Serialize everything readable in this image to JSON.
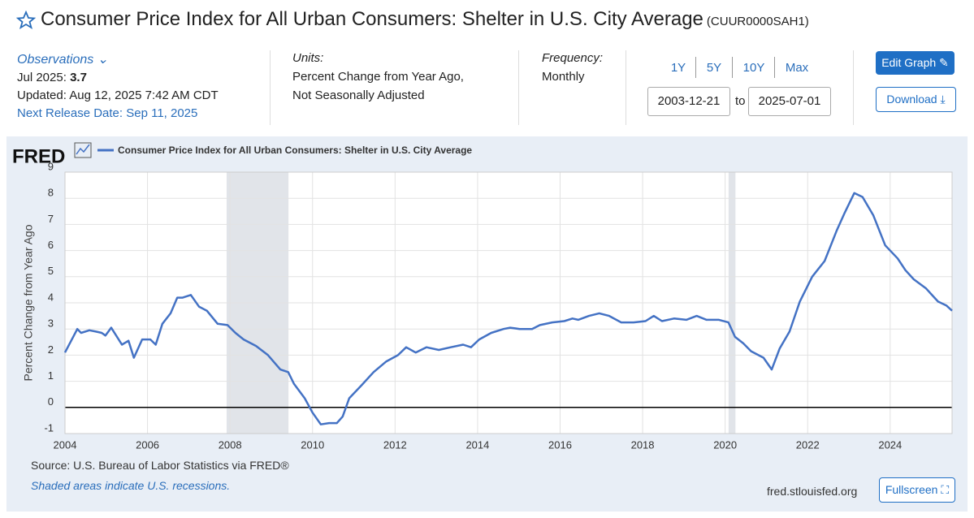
{
  "header": {
    "title": "Consumer Price Index for All Urban Consumers: Shelter in U.S. City Average",
    "series_id": "(CUUR0000SAH1)"
  },
  "observations": {
    "heading": "Observations",
    "label": "Jul 2025:",
    "value": "3.7",
    "updated": "Updated: Aug 12, 2025 7:42 AM CDT",
    "next_release": "Next Release Date: Sep 11, 2025"
  },
  "units": {
    "heading": "Units:",
    "lines": [
      "Percent Change from Year Ago,",
      "Not Seasonally Adjusted"
    ]
  },
  "frequency": {
    "heading": "Frequency:",
    "value": "Monthly"
  },
  "range": {
    "buttons": [
      "1Y",
      "5Y",
      "10Y",
      "Max"
    ],
    "start": "2003-12-21",
    "to": "to",
    "end": "2025-07-01"
  },
  "actions": {
    "edit": "Edit Graph",
    "download": "Download"
  },
  "chart_data": {
    "type": "line",
    "brand": "FRED",
    "y_label": "Percent Change from Year Ago",
    "xlim": [
      2004,
      2025.5
    ],
    "xticks": [
      2004,
      2006,
      2008,
      2010,
      2012,
      2014,
      2016,
      2018,
      2020,
      2022,
      2024
    ],
    "ylim": [
      -1,
      9
    ],
    "yticks": [
      -1,
      0,
      1,
      2,
      3,
      4,
      5,
      6,
      7,
      8,
      9
    ],
    "grid": true,
    "zero_line": true,
    "recessions": [
      [
        2007.917,
        2009.417
      ],
      [
        2020.083,
        2020.25
      ]
    ],
    "series": [
      {
        "name": "Consumer Price Index for All Urban Consumers: Shelter in U.S. City Average",
        "color": "#4472c4",
        "x": [
          2004.0,
          2004.3,
          2004.39,
          2004.59,
          2004.75,
          2004.89,
          2004.98,
          2005.12,
          2005.38,
          2005.54,
          2005.67,
          2005.87,
          2006.07,
          2006.2,
          2006.36,
          2006.56,
          2006.72,
          2006.85,
          2007.05,
          2007.25,
          2007.44,
          2007.7,
          2007.94,
          2008.13,
          2008.33,
          2008.63,
          2008.92,
          2009.22,
          2009.41,
          2009.55,
          2009.81,
          2010.0,
          2010.2,
          2010.4,
          2010.59,
          2010.73,
          2010.89,
          2011.19,
          2011.48,
          2011.78,
          2012.07,
          2012.27,
          2012.5,
          2012.76,
          2013.06,
          2013.35,
          2013.65,
          2013.84,
          2014.04,
          2014.33,
          2014.63,
          2014.79,
          2015.02,
          2015.32,
          2015.51,
          2015.81,
          2016.1,
          2016.3,
          2016.44,
          2016.7,
          2016.95,
          2017.19,
          2017.48,
          2017.78,
          2018.07,
          2018.27,
          2018.47,
          2018.76,
          2019.06,
          2019.31,
          2019.55,
          2019.85,
          2020.08,
          2020.24,
          2020.44,
          2020.63,
          2020.93,
          2021.13,
          2021.32,
          2021.56,
          2021.81,
          2022.11,
          2022.41,
          2022.7,
          2022.9,
          2023.13,
          2023.33,
          2023.59,
          2023.88,
          2024.18,
          2024.37,
          2024.57,
          2024.87,
          2025.16,
          2025.36,
          2025.5
        ],
        "values": [
          2.1,
          3.0,
          2.85,
          2.95,
          2.9,
          2.85,
          2.75,
          3.05,
          2.4,
          2.55,
          1.9,
          2.6,
          2.6,
          2.4,
          3.2,
          3.6,
          4.2,
          4.2,
          4.3,
          3.85,
          3.7,
          3.2,
          3.15,
          2.85,
          2.6,
          2.35,
          2.0,
          1.45,
          1.35,
          0.9,
          0.35,
          -0.2,
          -0.65,
          -0.6,
          -0.6,
          -0.35,
          0.35,
          0.85,
          1.35,
          1.75,
          2.0,
          2.3,
          2.1,
          2.3,
          2.2,
          2.3,
          2.4,
          2.3,
          2.6,
          2.85,
          3.0,
          3.05,
          3.0,
          3.0,
          3.15,
          3.25,
          3.3,
          3.4,
          3.35,
          3.5,
          3.6,
          3.5,
          3.25,
          3.25,
          3.3,
          3.5,
          3.3,
          3.4,
          3.35,
          3.5,
          3.35,
          3.35,
          3.25,
          2.7,
          2.45,
          2.15,
          1.9,
          1.45,
          2.25,
          2.9,
          4.05,
          5.0,
          5.6,
          6.75,
          7.45,
          8.2,
          8.05,
          7.35,
          6.2,
          5.7,
          5.25,
          4.9,
          4.55,
          4.05,
          3.9,
          3.7
        ]
      }
    ],
    "source": "Source: U.S. Bureau of Labor Statistics via FRED®",
    "note": "Shaded areas indicate U.S. recessions.",
    "site": "fred.stlouisfed.org",
    "fullscreen": "Fullscreen"
  }
}
